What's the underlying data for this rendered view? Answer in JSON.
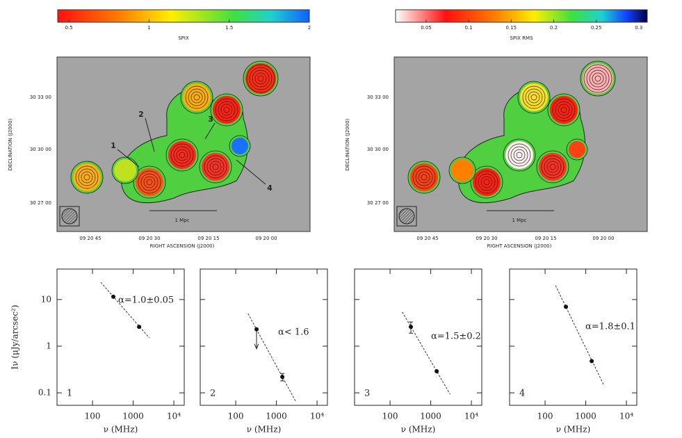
{
  "maps": [
    {
      "colorbar": {
        "label": "SPIX",
        "range": [
          0.43,
          2
        ],
        "ticks": [
          0.5,
          1,
          1.5,
          2
        ]
      },
      "yticks": [
        "30 33 00",
        "30 30 00",
        "30 27 00"
      ],
      "xticks": [
        "09 20 45",
        "09 20 30",
        "09 20 15",
        "09 20 00"
      ],
      "ylabel": "DECLINATION (J2000)",
      "xlabel": "RIGHT ASCENSION (J2000)",
      "scale_bar": "1 Mpc",
      "regions": [
        "1",
        "2",
        "3",
        "4"
      ]
    },
    {
      "colorbar": {
        "label": "SPIX RMS",
        "range": [
          0.014,
          0.31
        ],
        "ticks": [
          0.05,
          0.1,
          0.15,
          0.2,
          0.25,
          0.3
        ]
      },
      "yticks": [
        "30 33 00",
        "30 30 00",
        "30 27 00"
      ],
      "xticks": [
        "09 20 45",
        "09 20 30",
        "09 20 15",
        "09 20 00"
      ],
      "ylabel": "DECLINATION (J2000)",
      "xlabel": "RIGHT ASCENSION (J2000)",
      "scale_bar": "1 Mpc"
    }
  ],
  "chart_data": [
    {
      "type": "scatter",
      "panel": "1",
      "x": [
        325,
        1400
      ],
      "y": [
        11.5,
        2.6
      ],
      "fit": {
        "x": [
          160,
          2500
        ],
        "y": [
          23.4,
          1.5
        ]
      },
      "annotation": "α=1.0±0.05",
      "xlim": [
        13.4,
        18000
      ],
      "ylim": [
        0.054,
        45
      ],
      "log_x": true,
      "log_y": true,
      "xticks": [
        100,
        1000,
        {
          "value": 10000,
          "label": "10⁴"
        }
      ],
      "yticks": [
        0.1,
        1,
        10
      ],
      "xlabel": "ν (MHz)",
      "ylabel": "Iν (μJy/arcsec²)"
    },
    {
      "type": "scatter",
      "panel": "2",
      "x": [
        325,
        1400
      ],
      "y": [
        2.3,
        0.22
      ],
      "errors": [
        null,
        0.04
      ],
      "upper_limits": [
        true,
        false
      ],
      "fit": {
        "x": [
          200,
          3000
        ],
        "y": [
          5.0,
          0.065
        ]
      },
      "annotation": "α< 1.6",
      "xlim": [
        13.4,
        18000
      ],
      "ylim": [
        0.054,
        45
      ],
      "log_x": true,
      "log_y": true,
      "xticks": [
        100,
        1000,
        {
          "value": 10000,
          "label": "10⁴"
        }
      ],
      "xlabel": "ν (MHz)"
    },
    {
      "type": "scatter",
      "panel": "3",
      "x": [
        325,
        1400
      ],
      "y": [
        2.6,
        0.29
      ],
      "errors": [
        0.7,
        null
      ],
      "fit": {
        "x": [
          200,
          3000
        ],
        "y": [
          5.4,
          0.093
        ]
      },
      "annotation": "α=1.5±0.2",
      "xlim": [
        13.4,
        18000
      ],
      "ylim": [
        0.054,
        45
      ],
      "log_x": true,
      "log_y": true,
      "xticks": [
        100,
        1000,
        {
          "value": 10000,
          "label": "10⁴"
        }
      ],
      "xlabel": "ν (MHz)"
    },
    {
      "type": "scatter",
      "panel": "4",
      "x": [
        325,
        1400
      ],
      "y": [
        7,
        0.48
      ],
      "fit": {
        "x": [
          180,
          2800
        ],
        "y": [
          20,
          0.145
        ]
      },
      "annotation": "α=1.8±0.1",
      "xlim": [
        13.4,
        18000
      ],
      "ylim": [
        0.054,
        45
      ],
      "log_x": true,
      "log_y": true,
      "xticks": [
        100,
        1000,
        {
          "value": 10000,
          "label": "10⁴"
        }
      ],
      "xlabel": "ν (MHz)"
    }
  ]
}
